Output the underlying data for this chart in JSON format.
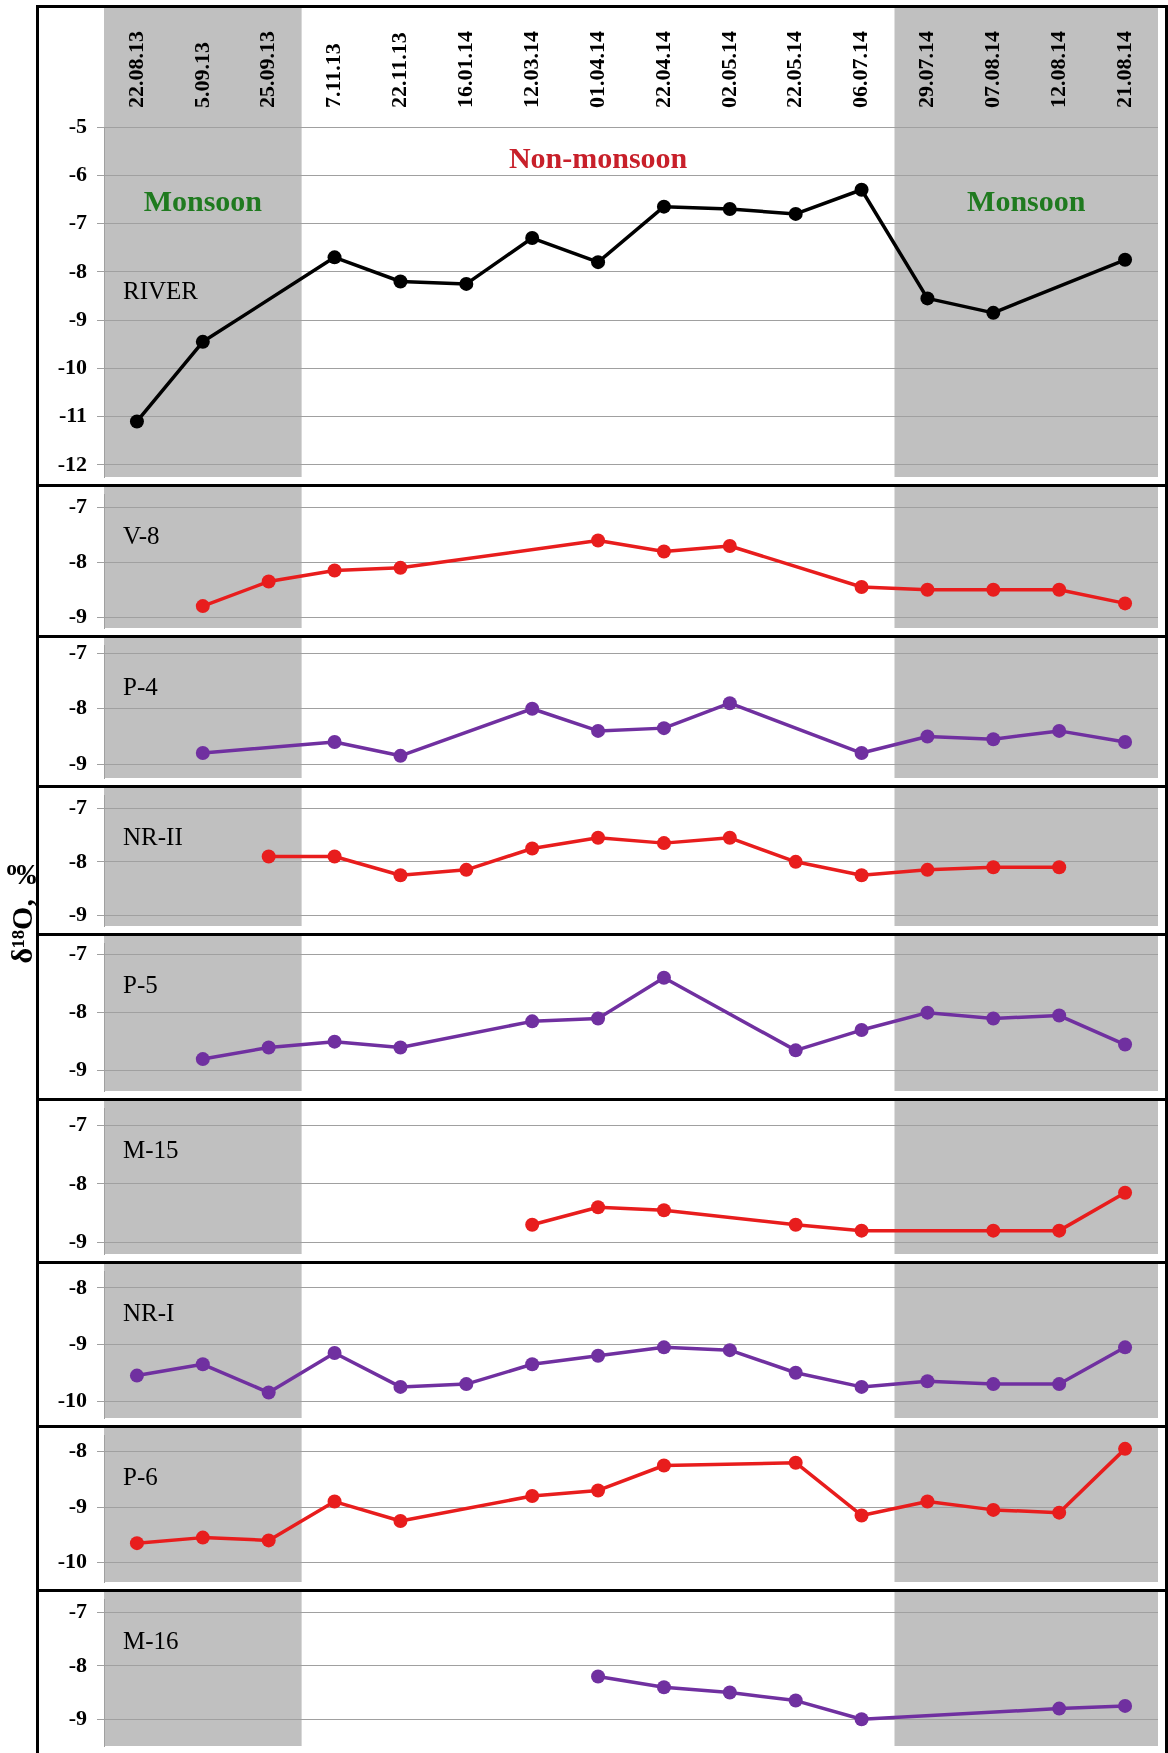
{
  "chart_data": [
    {
      "type": "line",
      "categories": [
        "22.08.13",
        "5.09.13",
        "25.09.13",
        "7.11.13",
        "22.11.13",
        "16.01.14",
        "12.03.14",
        "01.04.14",
        "22.04.14",
        "02.05.14",
        "22.05.14",
        "06.07.14",
        "29.07.14",
        "07.08.14",
        "12.08.14",
        "21.08.14"
      ],
      "series": [
        {
          "name": "RIVER",
          "color": "#000000",
          "values": [
            -11.1,
            -9.45,
            null,
            -7.7,
            -8.2,
            -8.25,
            -7.3,
            -7.8,
            -6.65,
            -6.7,
            -6.8,
            -6.3,
            -8.55,
            -8.85,
            null,
            -7.75
          ]
        }
      ],
      "ylim": [
        -12.25,
        -5
      ],
      "yticks": [
        -12,
        -11,
        -10,
        -9,
        -8,
        -7,
        -6,
        -5
      ],
      "grid": "y",
      "marker": "circle",
      "line_style": "solid",
      "bands": [
        {
          "axis": "x",
          "from": "22.08.13",
          "to": "25.09.13",
          "label": "Monsoon",
          "color": "#c0c0c0"
        },
        {
          "axis": "x",
          "from": "29.07.14",
          "to": "21.08.14",
          "label": "Monsoon",
          "color": "#c0c0c0"
        }
      ],
      "annotations": [
        "Non-monsoon"
      ]
    },
    {
      "type": "line",
      "categories": [
        "22.08.13",
        "5.09.13",
        "25.09.13",
        "7.11.13",
        "22.11.13",
        "16.01.14",
        "12.03.14",
        "01.04.14",
        "22.04.14",
        "02.05.14",
        "22.05.14",
        "06.07.14",
        "29.07.14",
        "07.08.14",
        "12.08.14",
        "21.08.14"
      ],
      "series": [
        {
          "name": "V-8",
          "color": "#e81d1d",
          "values": [
            null,
            -8.8,
            -8.35,
            -8.15,
            -8.1,
            null,
            null,
            -7.6,
            -7.8,
            -7.7,
            null,
            -8.45,
            -8.5,
            -8.5,
            -8.5,
            -8.75
          ]
        }
      ],
      "ylim": [
        -9.2,
        -6.75
      ],
      "yticks": [
        -9,
        -8,
        -7
      ],
      "grid": "y",
      "marker": "circle",
      "line_style": "solid",
      "tick_labels": "y",
      "bands": [
        {
          "axis": "x",
          "from": "22.08.13",
          "to": "25.09.13",
          "color": "#c0c0c0"
        },
        {
          "axis": "x",
          "from": "29.07.14",
          "to": "21.08.14",
          "color": "#c0c0c0"
        }
      ]
    },
    {
      "type": "line",
      "categories": [
        "22.08.13",
        "5.09.13",
        "25.09.13",
        "7.11.13",
        "22.11.13",
        "16.01.14",
        "12.03.14",
        "01.04.14",
        "22.04.14",
        "02.05.14",
        "22.05.14",
        "06.07.14",
        "29.07.14",
        "07.08.14",
        "12.08.14",
        "21.08.14"
      ],
      "series": [
        {
          "name": "P-4",
          "color": "#7030a0",
          "values": [
            null,
            -8.8,
            null,
            -8.6,
            -8.85,
            null,
            -8.0,
            -8.4,
            -8.35,
            -7.9,
            null,
            -8.8,
            -8.5,
            -8.55,
            -8.4,
            -8.6
          ]
        }
      ],
      "ylim": [
        -9.25,
        -6.85
      ],
      "yticks": [
        -9,
        -8,
        -7
      ],
      "grid": "y",
      "marker": "circle",
      "line_style": "solid",
      "tick_labels": "y",
      "bands": [
        {
          "axis": "x",
          "from": "22.08.13",
          "to": "25.09.13",
          "color": "#c0c0c0"
        },
        {
          "axis": "x",
          "from": "29.07.14",
          "to": "21.08.14",
          "color": "#c0c0c0"
        }
      ]
    },
    {
      "type": "line",
      "ylabel": "δ¹⁸O, ‰",
      "categories": [
        "22.08.13",
        "5.09.13",
        "25.09.13",
        "7.11.13",
        "22.11.13",
        "16.01.14",
        "12.03.14",
        "01.04.14",
        "22.04.14",
        "02.05.14",
        "22.05.14",
        "06.07.14",
        "29.07.14",
        "07.08.14",
        "12.08.14",
        "21.08.14"
      ],
      "series": [
        {
          "name": "NR-II",
          "color": "#e81d1d",
          "values": [
            null,
            null,
            -7.9,
            -7.9,
            -8.25,
            -8.15,
            -7.75,
            -7.55,
            -7.65,
            -7.55,
            -8.0,
            -8.25,
            -8.15,
            -8.1,
            -8.1,
            null
          ]
        }
      ],
      "ylim": [
        -9.2,
        -6.75
      ],
      "yticks": [
        -9,
        -8,
        -7
      ],
      "grid": "y",
      "marker": "circle",
      "line_style": "solid",
      "tick_labels": "y",
      "bands": [
        {
          "axis": "x",
          "from": "22.08.13",
          "to": "25.09.13",
          "color": "#c0c0c0"
        },
        {
          "axis": "x",
          "from": "29.07.14",
          "to": "21.08.14",
          "color": "#c0c0c0"
        }
      ]
    },
    {
      "type": "line",
      "categories": [
        "22.08.13",
        "5.09.13",
        "25.09.13",
        "7.11.13",
        "22.11.13",
        "16.01.14",
        "12.03.14",
        "01.04.14",
        "22.04.14",
        "02.05.14",
        "22.05.14",
        "06.07.14",
        "29.07.14",
        "07.08.14",
        "12.08.14",
        "21.08.14"
      ],
      "series": [
        {
          "name": "P-5",
          "color": "#7030a0",
          "values": [
            null,
            -8.8,
            -8.6,
            -8.5,
            -8.6,
            null,
            -8.15,
            -8.1,
            -7.4,
            null,
            -8.65,
            -8.3,
            -8.0,
            -8.1,
            -8.05,
            -8.55
          ]
        }
      ],
      "ylim": [
        -9.35,
        -6.8
      ],
      "yticks": [
        -9,
        -8,
        -7
      ],
      "grid": "y",
      "marker": "circle",
      "line_style": "solid",
      "tick_labels": "y",
      "bands": [
        {
          "axis": "x",
          "from": "22.08.13",
          "to": "25.09.13",
          "color": "#c0c0c0"
        },
        {
          "axis": "x",
          "from": "29.07.14",
          "to": "21.08.14",
          "color": "#c0c0c0"
        }
      ]
    },
    {
      "type": "line",
      "categories": [
        "22.08.13",
        "5.09.13",
        "25.09.13",
        "7.11.13",
        "22.11.13",
        "16.01.14",
        "12.03.14",
        "01.04.14",
        "22.04.14",
        "02.05.14",
        "22.05.14",
        "06.07.14",
        "29.07.14",
        "07.08.14",
        "12.08.14",
        "21.08.14"
      ],
      "series": [
        {
          "name": "M-15",
          "color": "#e81d1d",
          "values": [
            null,
            null,
            null,
            null,
            null,
            null,
            -8.7,
            -8.4,
            -8.45,
            null,
            -8.7,
            -8.8,
            null,
            -8.8,
            -8.8,
            -8.15
          ]
        }
      ],
      "ylim": [
        -9.2,
        -6.7
      ],
      "yticks": [
        -9,
        -8,
        -7
      ],
      "grid": "y",
      "marker": "circle",
      "line_style": "solid",
      "tick_labels": "y",
      "bands": [
        {
          "axis": "x",
          "from": "22.08.13",
          "to": "25.09.13",
          "color": "#c0c0c0"
        },
        {
          "axis": "x",
          "from": "29.07.14",
          "to": "21.08.14",
          "color": "#c0c0c0"
        }
      ]
    },
    {
      "type": "line",
      "categories": [
        "22.08.13",
        "5.09.13",
        "25.09.13",
        "7.11.13",
        "22.11.13",
        "16.01.14",
        "12.03.14",
        "01.04.14",
        "22.04.14",
        "02.05.14",
        "22.05.14",
        "06.07.14",
        "29.07.14",
        "07.08.14",
        "12.08.14",
        "21.08.14"
      ],
      "series": [
        {
          "name": "NR-I",
          "color": "#7030a0",
          "values": [
            -9.55,
            -9.35,
            -9.85,
            -9.15,
            -9.75,
            -9.7,
            -9.35,
            -9.2,
            -9.05,
            -9.1,
            -9.5,
            -9.75,
            -9.65,
            -9.7,
            -9.7,
            -9.05
          ]
        }
      ],
      "ylim": [
        -10.3,
        -7.7
      ],
      "yticks": [
        -10,
        -9,
        -8
      ],
      "grid": "y",
      "marker": "circle",
      "line_style": "solid",
      "tick_labels": "y",
      "bands": [
        {
          "axis": "x",
          "from": "22.08.13",
          "to": "25.09.13",
          "color": "#c0c0c0"
        },
        {
          "axis": "x",
          "from": "29.07.14",
          "to": "21.08.14",
          "color": "#c0c0c0"
        }
      ]
    },
    {
      "type": "line",
      "categories": [
        "22.08.13",
        "5.09.13",
        "25.09.13",
        "7.11.13",
        "22.11.13",
        "16.01.14",
        "12.03.14",
        "01.04.14",
        "22.04.14",
        "02.05.14",
        "22.05.14",
        "06.07.14",
        "29.07.14",
        "07.08.14",
        "12.08.14",
        "21.08.14"
      ],
      "series": [
        {
          "name": "P-6",
          "color": "#e81d1d",
          "values": [
            -9.65,
            -9.55,
            -9.6,
            -8.9,
            -9.25,
            null,
            -8.8,
            -8.7,
            -8.25,
            null,
            -8.2,
            -9.15,
            -8.9,
            -9.05,
            -9.1,
            -7.95
          ]
        }
      ],
      "ylim": [
        -10.35,
        -7.7
      ],
      "yticks": [
        -10,
        -9,
        -8
      ],
      "grid": "y",
      "marker": "circle",
      "line_style": "solid",
      "tick_labels": "y",
      "bands": [
        {
          "axis": "x",
          "from": "22.08.13",
          "to": "25.09.13",
          "color": "#c0c0c0"
        },
        {
          "axis": "x",
          "from": "29.07.14",
          "to": "21.08.14",
          "color": "#c0c0c0"
        }
      ]
    },
    {
      "type": "line",
      "categories": [
        "22.08.13",
        "5.09.13",
        "25.09.13",
        "7.11.13",
        "22.11.13",
        "16.01.14",
        "12.03.14",
        "01.04.14",
        "22.04.14",
        "02.05.14",
        "22.05.14",
        "06.07.14",
        "29.07.14",
        "07.08.14",
        "12.08.14",
        "21.08.14"
      ],
      "series": [
        {
          "name": "M-16",
          "color": "#7030a0",
          "values": [
            null,
            null,
            null,
            null,
            null,
            null,
            null,
            -8.2,
            -8.4,
            -8.5,
            -8.65,
            -9.0,
            null,
            null,
            -8.8,
            -8.75
          ]
        }
      ],
      "ylim": [
        -9.5,
        -6.75
      ],
      "yticks": [
        -9,
        -8,
        -7
      ],
      "grid": "y",
      "marker": "circle",
      "line_style": "solid",
      "tick_labels": "y",
      "bands": [
        {
          "axis": "x",
          "from": "22.08.13",
          "to": "25.09.13",
          "color": "#c0c0c0"
        },
        {
          "axis": "x",
          "from": "29.07.14",
          "to": "21.08.14",
          "color": "#c0c0c0"
        }
      ]
    }
  ]
}
